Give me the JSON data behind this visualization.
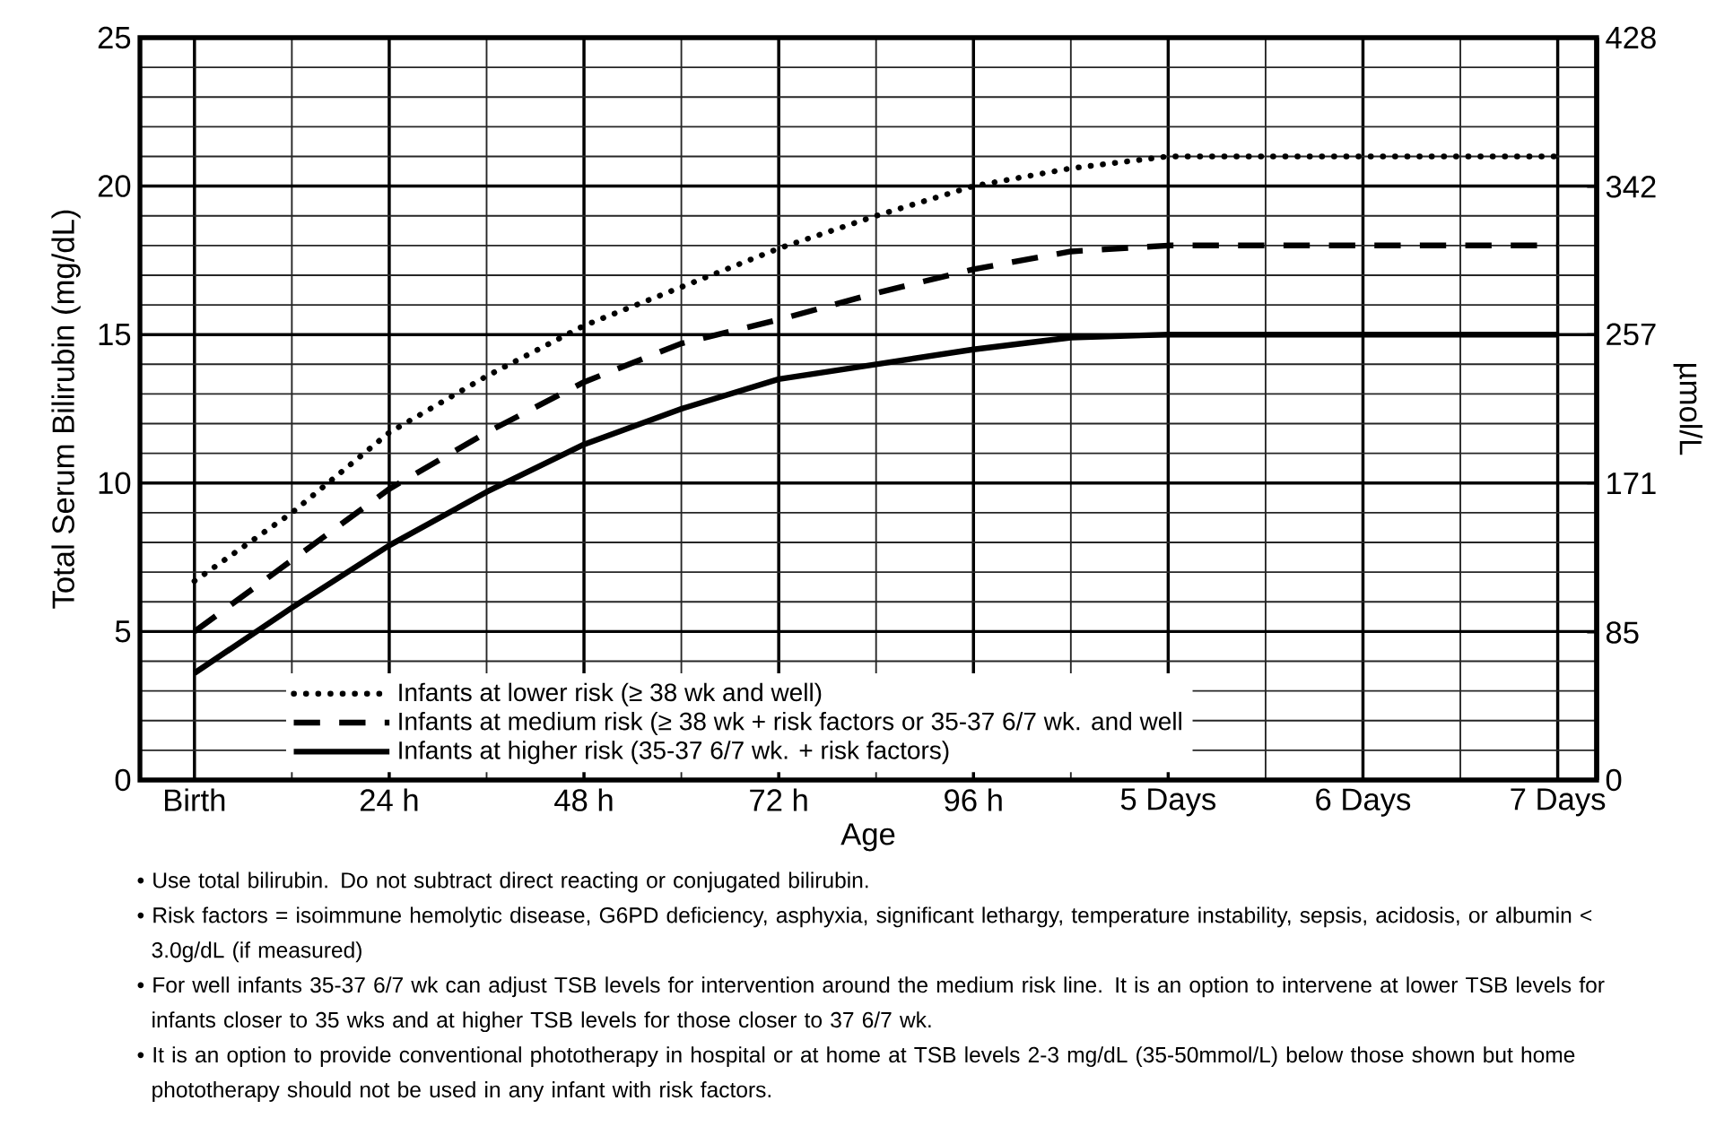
{
  "chart_data": {
    "type": "line",
    "xlabel": "Age",
    "ylabel": "Total Serum Bilirubin (mg/dL)",
    "y2label": "µmol/L",
    "categories": [
      "Birth",
      null,
      "24 h",
      null,
      "48 h",
      null,
      "72 h",
      null,
      "96 h",
      null,
      "5 Days",
      null,
      "6 Days",
      null,
      "7 Days"
    ],
    "series": [
      {
        "name": "Infants at lower risk (≥ 38 wk and well)",
        "color": "#000000",
        "line_style": "dotted",
        "values": [
          6.7,
          9.0,
          11.7,
          13.6,
          15.3,
          16.6,
          17.9,
          19.0,
          20.0,
          20.6,
          21,
          21,
          21,
          21,
          21
        ]
      },
      {
        "name": "Infants at medium risk (≥ 38 wk + risk factors or 35-37 6/7 wk. and well",
        "color": "#000000",
        "line_style": "dashed",
        "values": [
          5.0,
          7.4,
          9.8,
          11.7,
          13.4,
          14.7,
          15.5,
          16.4,
          17.2,
          17.8,
          18,
          18,
          18,
          18,
          18
        ]
      },
      {
        "name": "Infants at higher risk (35-37 6/7 wk. + risk factors)",
        "color": "#000000",
        "line_style": "solid",
        "values": [
          3.6,
          5.8,
          7.9,
          9.7,
          11.3,
          12.5,
          13.5,
          14.0,
          14.5,
          14.9,
          15,
          15,
          15,
          15,
          15
        ]
      }
    ],
    "ylim": [
      0,
      25
    ],
    "yticks": [
      0,
      {
        "value": 1,
        "label": null
      },
      {
        "value": 2,
        "label": null
      },
      {
        "value": 3,
        "label": null
      },
      {
        "value": 4,
        "label": null
      },
      5,
      {
        "value": 6,
        "label": null
      },
      {
        "value": 7,
        "label": null
      },
      {
        "value": 8,
        "label": null
      },
      {
        "value": 9,
        "label": null
      },
      10,
      {
        "value": 11,
        "label": null
      },
      {
        "value": 12,
        "label": null
      },
      {
        "value": 13,
        "label": null
      },
      {
        "value": 14,
        "label": null
      },
      15,
      {
        "value": 16,
        "label": null
      },
      {
        "value": 17,
        "label": null
      },
      {
        "value": 18,
        "label": null
      },
      {
        "value": 19,
        "label": null
      },
      20,
      {
        "value": 21,
        "label": null
      },
      {
        "value": 22,
        "label": null
      },
      {
        "value": 23,
        "label": null
      },
      {
        "value": 24,
        "label": null
      },
      25
    ],
    "y2lim": [
      0,
      428
    ],
    "y2ticks": [
      0,
      85,
      171,
      257,
      342,
      428
    ],
    "grid": true,
    "legend": "bottom",
    "annotations": [
      "• Use total bilirubin.  Do not subtract direct reacting or conjugated bilirubin.",
      "• Risk factors = isoimmune hemolytic disease, G6PD deficiency, asphyxia, significant lethargy, temperature instability, sepsis, acidosis, or albumin < 3.0g/dL (if measured)",
      "• For well infants 35-37 6/7 wk can adjust TSB levels for intervention around the medium risk line.  It is an option to intervene at lower TSB levels for infants closer to 35 wks and at higher TSB levels for those closer to 37 6/7 wk.",
      "• It is an option to provide conventional phototherapy in hospital or at home at TSB levels 2-3 mg/dL (35-50mmol/L) below those shown but home phototherapy should not be used in any infant with risk factors."
    ]
  }
}
